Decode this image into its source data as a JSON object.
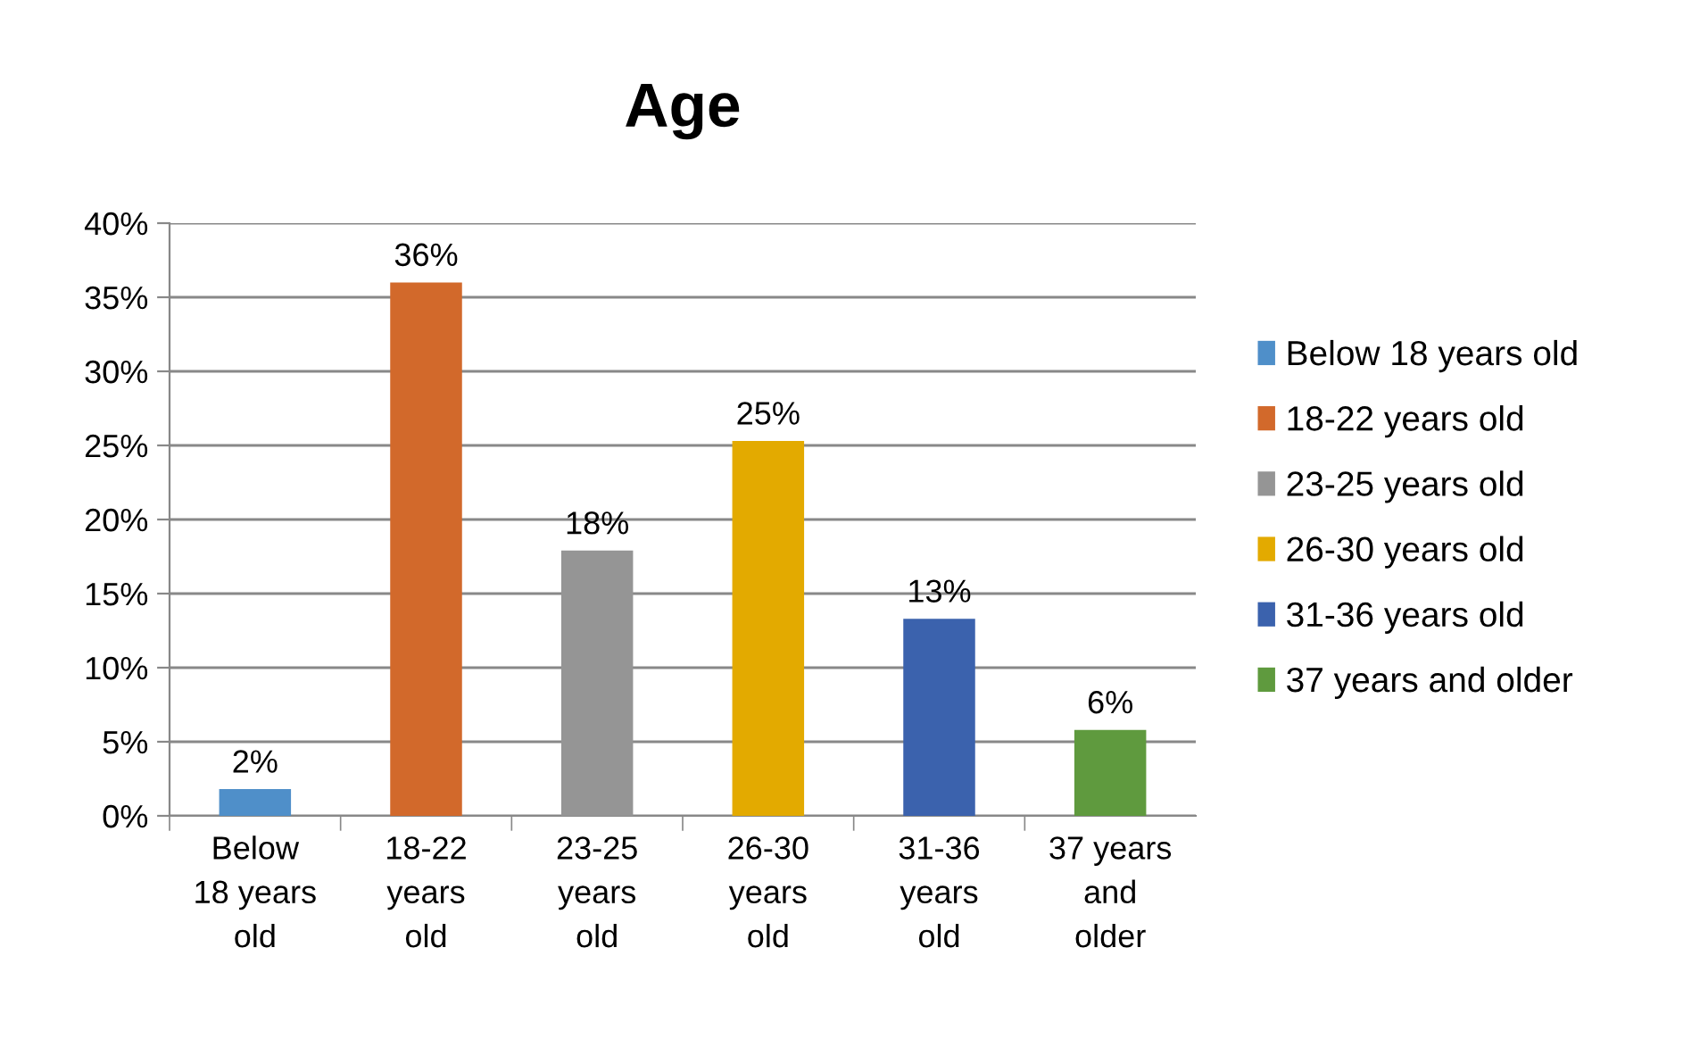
{
  "chart_data": {
    "type": "bar",
    "title": "Age",
    "categories": [
      "Below\n18 years\nold",
      "18-22\nyears\nold",
      "23-25\nyears\nold",
      "26-30\nyears\nold",
      "31-36\nyears\nold",
      "37 years\nand\nolder"
    ],
    "series": [
      {
        "name": "Below 18 years old",
        "color": "#4f8fc9",
        "values": [
          1.8,
          null,
          null,
          null,
          null,
          null
        ],
        "value_labels": [
          "2%",
          null,
          null,
          null,
          null,
          null
        ]
      },
      {
        "name": "18-22 years old",
        "color": "#d2692b",
        "values": [
          null,
          36,
          null,
          null,
          null,
          null
        ],
        "value_labels": [
          null,
          "36%",
          null,
          null,
          null,
          null
        ]
      },
      {
        "name": "23-25 years old",
        "color": "#959595",
        "values": [
          null,
          null,
          17.9,
          null,
          null,
          null
        ],
        "value_labels": [
          null,
          null,
          "18%",
          null,
          null,
          null
        ]
      },
      {
        "name": "26-30 years old",
        "color": "#e3aa00",
        "values": [
          null,
          null,
          null,
          25.3,
          null,
          null
        ],
        "value_labels": [
          null,
          null,
          null,
          "25%",
          null,
          null
        ]
      },
      {
        "name": "31-36 years old",
        "color": "#3b62ad",
        "values": [
          null,
          null,
          null,
          null,
          13.3,
          null
        ],
        "value_labels": [
          null,
          null,
          null,
          null,
          "13%",
          null
        ]
      },
      {
        "name": "37 years and older",
        "color": "#5f9a3e",
        "values": [
          null,
          null,
          null,
          null,
          null,
          5.8
        ],
        "value_labels": [
          null,
          null,
          null,
          null,
          null,
          "6%"
        ]
      }
    ],
    "ylim": [
      0,
      40
    ],
    "yticks": [
      {
        "value": 0,
        "label": "0%"
      },
      {
        "value": 5,
        "label": "5%"
      },
      {
        "value": 10,
        "label": "10%"
      },
      {
        "value": 15,
        "label": "15%"
      },
      {
        "value": 20,
        "label": "20%"
      },
      {
        "value": 25,
        "label": "25%"
      },
      {
        "value": 30,
        "label": "30%"
      },
      {
        "value": 35,
        "label": "35%"
      },
      {
        "value": 40,
        "label": "40%"
      }
    ],
    "grid": "y",
    "legend": "right"
  }
}
